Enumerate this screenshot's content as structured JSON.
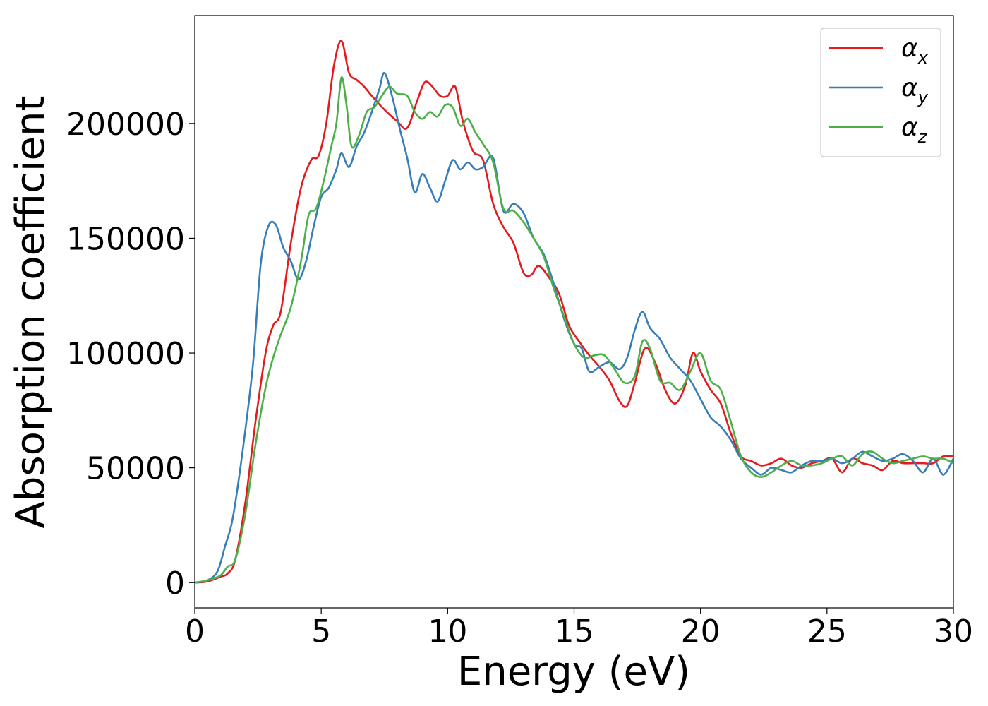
{
  "chart_data": {
    "type": "line",
    "xlabel": "Energy (eV)",
    "ylabel": "Absorption coefficient",
    "xlim": [
      0,
      30
    ],
    "ylim": [
      -11000,
      247000
    ],
    "xticks": [
      0,
      5,
      10,
      15,
      20,
      25,
      30
    ],
    "yticks": [
      0,
      50000,
      100000,
      150000,
      200000
    ],
    "grid": false,
    "legend_position": "top-right",
    "series": [
      {
        "name": "α_x",
        "label_base": "α",
        "label_sub": "x",
        "color": "#e41a1c",
        "x": [
          0,
          0.5,
          1.0,
          1.3,
          1.6,
          2.0,
          2.4,
          2.8,
          3.1,
          3.4,
          3.8,
          4.2,
          4.6,
          4.9,
          5.2,
          5.5,
          5.8,
          6.1,
          6.4,
          6.7,
          7.0,
          7.5,
          8.0,
          8.4,
          8.8,
          9.1,
          9.4,
          9.7,
          10.0,
          10.3,
          10.6,
          11.0,
          11.4,
          11.8,
          12.2,
          12.6,
          13.0,
          13.3,
          13.6,
          14.0,
          14.4,
          14.8,
          15.2,
          15.6,
          16.0,
          16.4,
          16.8,
          17.1,
          17.4,
          17.8,
          18.2,
          18.6,
          19.0,
          19.4,
          19.7,
          20.0,
          20.4,
          20.8,
          21.2,
          21.6,
          22.0,
          22.4,
          22.8,
          23.2,
          23.6,
          24.0,
          24.4,
          24.8,
          25.2,
          25.6,
          26.0,
          26.4,
          26.8,
          27.2,
          27.6,
          28.0,
          28.4,
          28.8,
          29.2,
          29.6,
          30.0
        ],
        "values": [
          0,
          500,
          2500,
          4000,
          10000,
          35000,
          70000,
          100000,
          112000,
          118000,
          148000,
          172000,
          184000,
          186000,
          200000,
          225000,
          236000,
          222000,
          219000,
          216000,
          212000,
          206000,
          201000,
          198000,
          210000,
          218000,
          216000,
          212000,
          212000,
          216000,
          201000,
          188000,
          184000,
          165000,
          155000,
          148000,
          135000,
          134000,
          138000,
          133000,
          126000,
          112000,
          105000,
          99000,
          94000,
          88000,
          79000,
          77000,
          87000,
          102000,
          96000,
          84000,
          78000,
          86000,
          100000,
          92000,
          84000,
          78000,
          65000,
          55000,
          53000,
          51000,
          52000,
          54000,
          51000,
          50000,
          52000,
          53000,
          54000,
          48000,
          54000,
          52000,
          51000,
          49000,
          53000,
          52000,
          52000,
          52000,
          52000,
          55000,
          55000
        ]
      },
      {
        "name": "α_y",
        "label_base": "α",
        "label_sub": "y",
        "color": "#377eb8",
        "x": [
          0,
          0.5,
          0.9,
          1.2,
          1.5,
          1.9,
          2.3,
          2.6,
          2.9,
          3.2,
          3.5,
          3.8,
          4.1,
          4.4,
          4.7,
          5.0,
          5.3,
          5.6,
          5.8,
          6.1,
          6.4,
          6.7,
          7.0,
          7.3,
          7.5,
          7.8,
          8.1,
          8.4,
          8.7,
          9.0,
          9.3,
          9.6,
          9.9,
          10.2,
          10.5,
          10.8,
          11.1,
          11.4,
          11.8,
          12.2,
          12.6,
          13.0,
          13.4,
          13.8,
          14.2,
          14.6,
          15.0,
          15.3,
          15.6,
          16.0,
          16.4,
          16.8,
          17.1,
          17.4,
          17.7,
          18.0,
          18.4,
          18.8,
          19.2,
          19.6,
          20.0,
          20.4,
          20.8,
          21.2,
          21.6,
          22.0,
          22.4,
          22.8,
          23.2,
          23.6,
          24.0,
          24.4,
          24.8,
          25.2,
          25.6,
          26.0,
          26.4,
          26.8,
          27.2,
          27.6,
          28.0,
          28.4,
          28.8,
          29.2,
          29.6,
          30.0
        ],
        "values": [
          0,
          1000,
          5000,
          16000,
          28000,
          58000,
          95000,
          138000,
          155000,
          156000,
          146000,
          140000,
          132000,
          140000,
          155000,
          168000,
          172000,
          180000,
          187000,
          181000,
          190000,
          196000,
          205000,
          215000,
          222000,
          212000,
          198000,
          185000,
          170000,
          178000,
          172000,
          166000,
          175000,
          184000,
          180000,
          183000,
          180000,
          181000,
          185000,
          162000,
          165000,
          161000,
          150000,
          143000,
          130000,
          115000,
          104000,
          102000,
          92000,
          94000,
          96000,
          93000,
          98000,
          110000,
          118000,
          111000,
          106000,
          98000,
          93000,
          88000,
          80000,
          72000,
          68000,
          62000,
          54000,
          50000,
          47000,
          50000,
          49000,
          48000,
          51000,
          53000,
          53000,
          54000,
          52000,
          54000,
          57000,
          55000,
          53000,
          54000,
          56000,
          53000,
          48000,
          54000,
          47000,
          54000
        ]
      },
      {
        "name": "α_z",
        "label_base": "α",
        "label_sub": "z",
        "color": "#4daf4a",
        "x": [
          0,
          0.5,
          1.0,
          1.3,
          1.6,
          2.0,
          2.4,
          2.8,
          3.1,
          3.4,
          3.8,
          4.2,
          4.5,
          4.8,
          5.1,
          5.4,
          5.6,
          5.8,
          6.0,
          6.2,
          6.5,
          6.8,
          7.1,
          7.4,
          7.7,
          8.0,
          8.4,
          8.7,
          9.0,
          9.3,
          9.6,
          9.9,
          10.2,
          10.5,
          10.8,
          11.1,
          11.4,
          11.8,
          12.2,
          12.6,
          13.0,
          13.4,
          13.8,
          14.2,
          14.6,
          15.0,
          15.4,
          15.8,
          16.2,
          16.6,
          17.0,
          17.4,
          17.7,
          18.0,
          18.4,
          18.8,
          19.2,
          19.6,
          20.0,
          20.4,
          20.8,
          21.2,
          21.6,
          22.0,
          22.4,
          22.8,
          23.2,
          23.6,
          24.0,
          24.4,
          24.8,
          25.2,
          25.6,
          26.0,
          26.4,
          26.8,
          27.2,
          27.6,
          28.0,
          28.4,
          28.8,
          29.2,
          29.6,
          30.0
        ],
        "values": [
          0,
          1000,
          3000,
          7000,
          10000,
          30000,
          60000,
          85000,
          98000,
          108000,
          120000,
          140000,
          160000,
          163000,
          175000,
          190000,
          200000,
          220000,
          208000,
          190000,
          195000,
          205000,
          207000,
          212000,
          216000,
          213000,
          212000,
          205000,
          202000,
          205000,
          203000,
          208000,
          207000,
          199000,
          202000,
          196000,
          191000,
          183000,
          163000,
          162000,
          157000,
          150000,
          142000,
          128000,
          116000,
          104000,
          98000,
          99000,
          99000,
          93000,
          87000,
          90000,
          105000,
          102000,
          88000,
          87000,
          84000,
          92000,
          100000,
          88000,
          84000,
          70000,
          55000,
          48000,
          46000,
          48000,
          51000,
          53000,
          51000,
          51000,
          52000,
          54000,
          55000,
          51000,
          56000,
          57000,
          54000,
          52000,
          53000,
          54000,
          55000,
          54000,
          54000,
          52000
        ]
      }
    ]
  }
}
